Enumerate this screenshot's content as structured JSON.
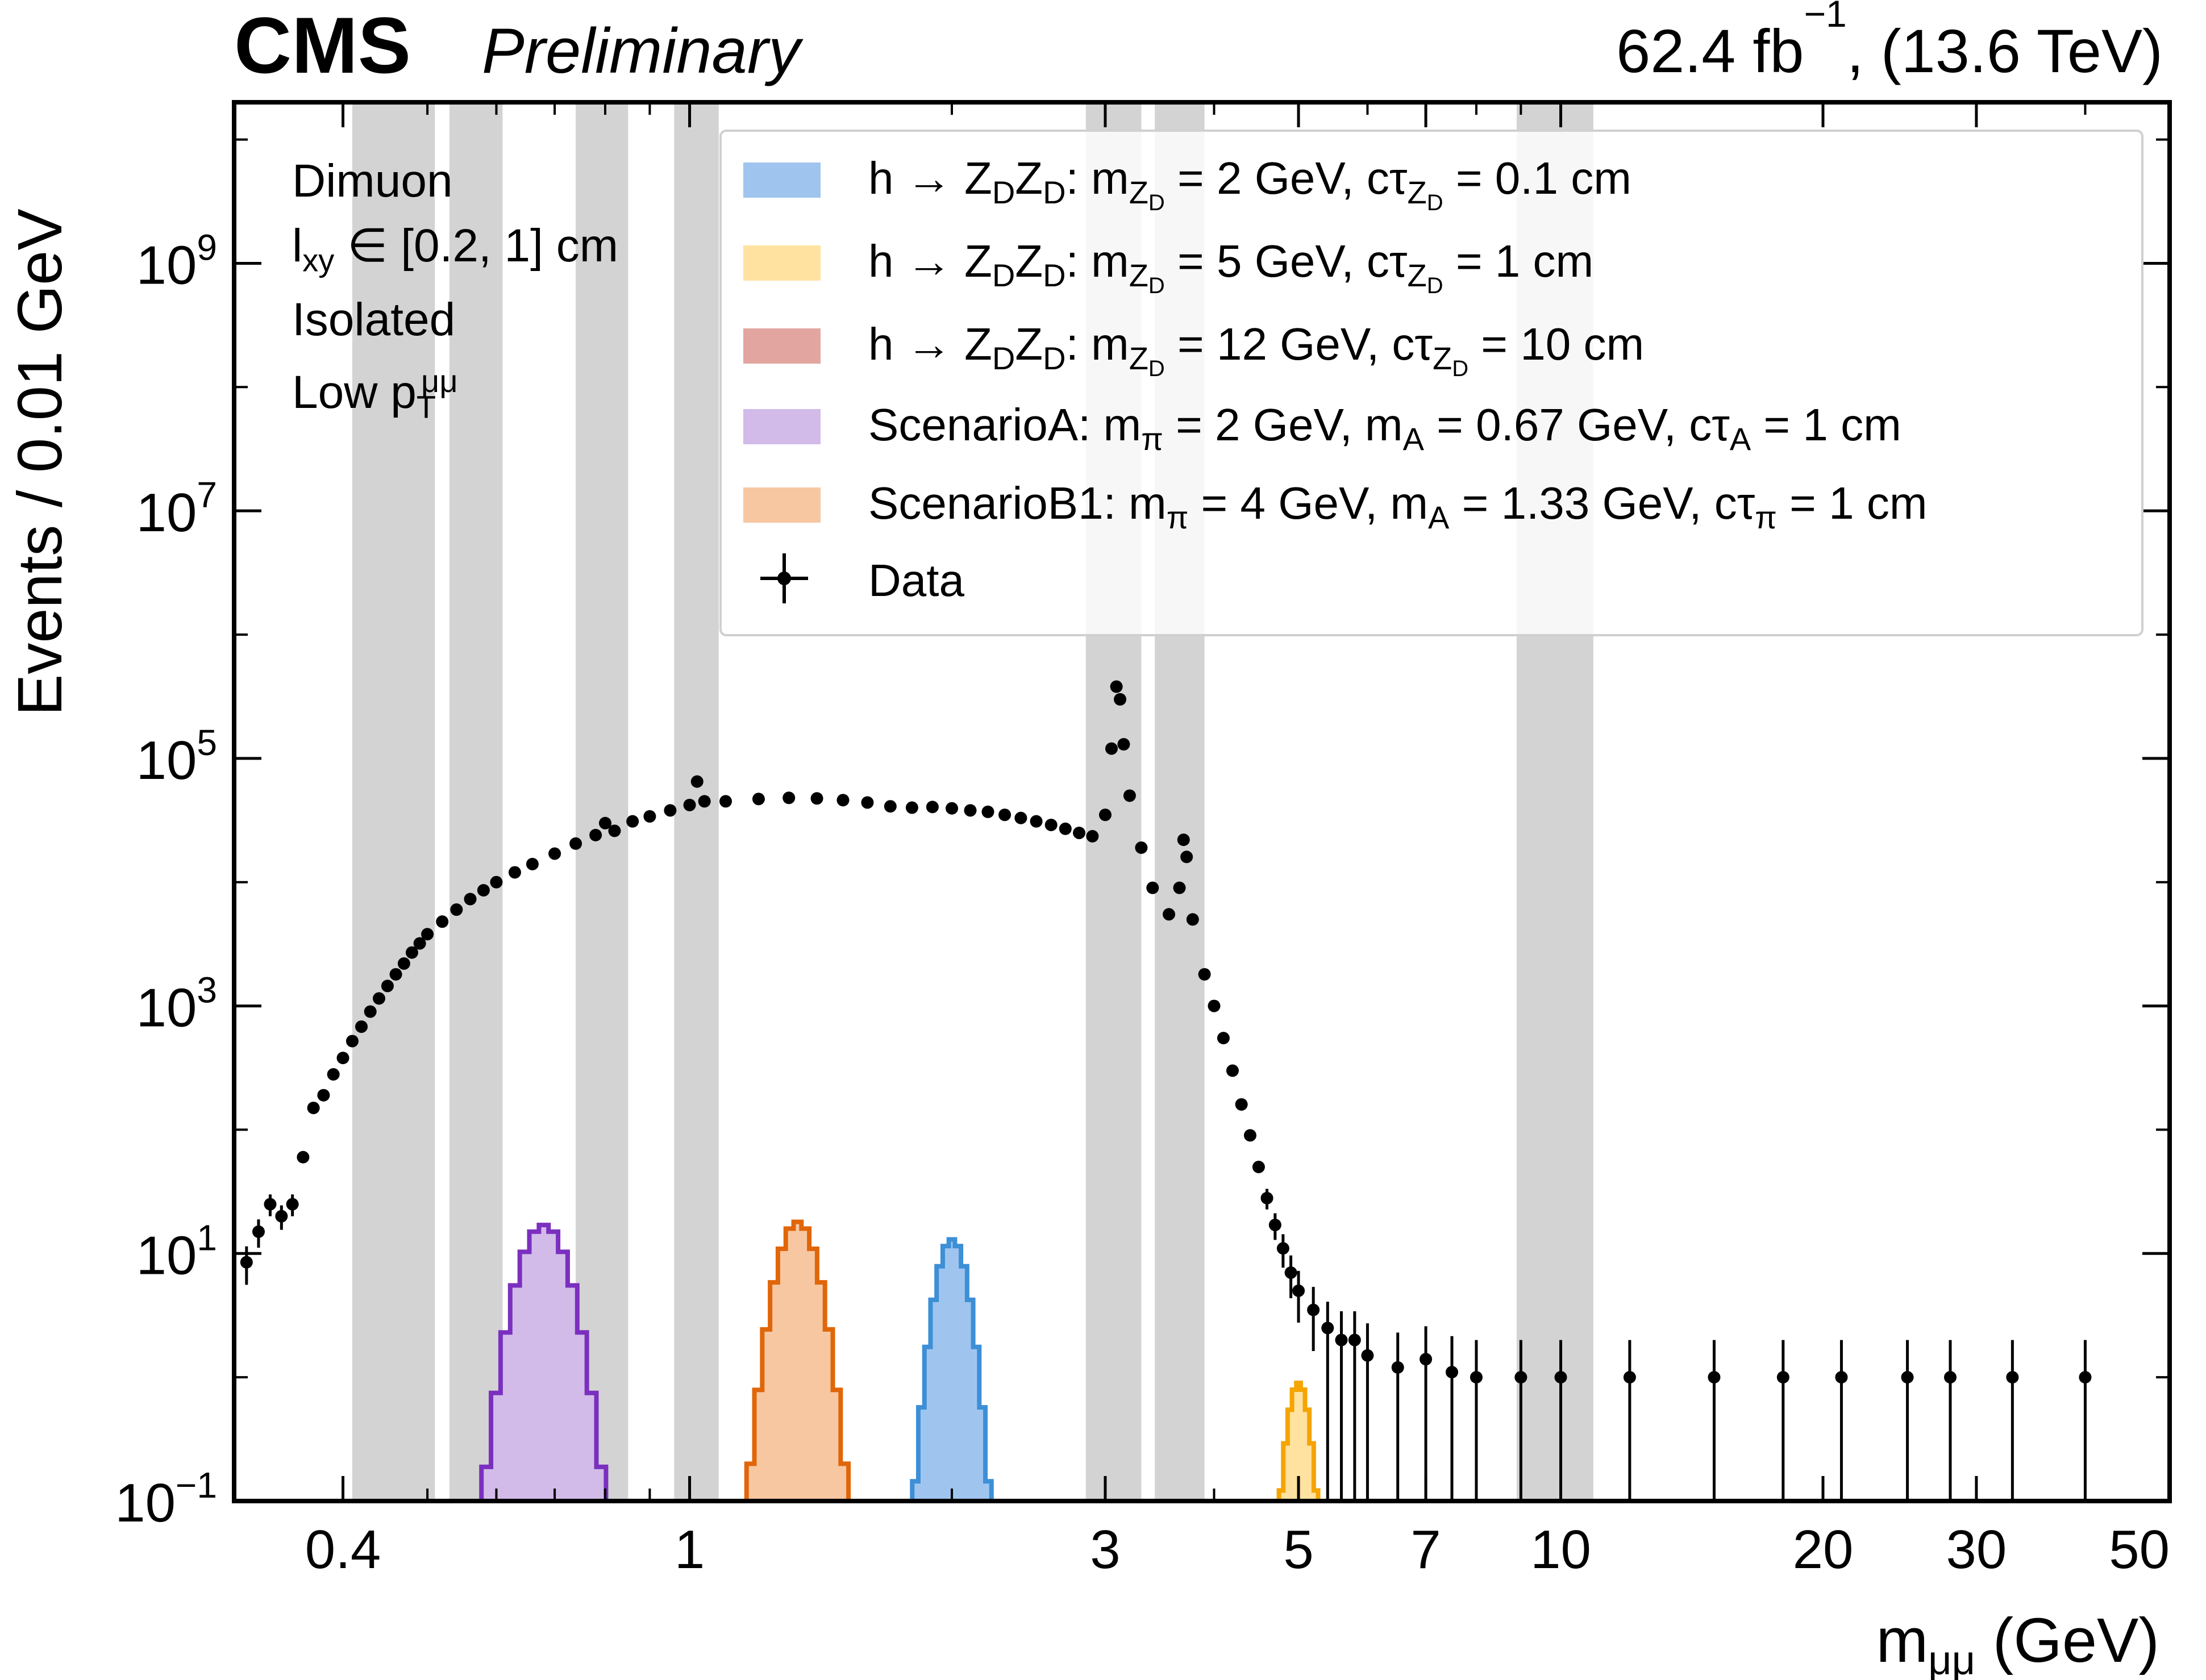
{
  "header": {
    "experiment": "CMS",
    "status": "Preliminary",
    "luminosity": "62.4 fb",
    "luminosity_exponent": "−1",
    "energy": ",  (13.6 TeV)"
  },
  "region": {
    "channel": "Dimuon",
    "lxy_range": "[0.2, 1] cm",
    "isolation": "Isolated",
    "pt_bin": "Low"
  },
  "legend": {
    "entries": [
      {
        "name": "hzd-2gev",
        "color": "#9fc5ef",
        "label_pre": "h → Z",
        "label_mid": " GeV, cτ",
        "mass": "2",
        "ctau": " 0.1 cm"
      },
      {
        "name": "hzd-5gev",
        "color": "#ffe2a0",
        "label_pre": "h → Z",
        "label_mid": " GeV, cτ",
        "mass": "5",
        "ctau": " 1 cm"
      },
      {
        "name": "hzd-12gev",
        "color": "#e2a5a0",
        "label_pre": "h → Z",
        "label_mid": " GeV, cτ",
        "mass": "12",
        "ctau": " 10 cm"
      }
    ],
    "scenarioA": "ScenarioA: m",
    "scenarioA_rest": " = 2 GeV, m",
    "scenarioA_ma": " = 0.67 GeV, cτ",
    "scenarioA_ct": " =  1 cm",
    "scenarioB": "ScenarioB1: m",
    "scenarioB_rest": " = 4 GeV, m",
    "scenarioB_ma": " = 1.33 GeV, cτ",
    "scenarioB_ct": " =  1 cm",
    "data_label": "Data",
    "colors": {
      "scenarioA": "#d2bbe9",
      "scenarioB1": "#f7c7a2"
    }
  },
  "chart_data": {
    "type": "line",
    "xscale": "log",
    "yscale": "log",
    "xlim": [
      0.3,
      50
    ],
    "ylim": [
      0.1,
      20000000000.0
    ],
    "xlabel": "m",
    "xlabel_sub": "μμ",
    "xlabel_unit": " (GeV)",
    "ylabel": "Events / 0.01 GeV",
    "x_ticks": [
      {
        "v": 0.4,
        "label": "0.4"
      },
      {
        "v": 1,
        "label": "1"
      },
      {
        "v": 3,
        "label": "3"
      },
      {
        "v": 5,
        "label": "5"
      },
      {
        "v": 7,
        "label": "7"
      },
      {
        "v": 10,
        "label": "10"
      },
      {
        "v": 20,
        "label": "20"
      },
      {
        "v": 30,
        "label": "30"
      },
      {
        "v": 50,
        "label": "50"
      }
    ],
    "y_ticks": [
      {
        "v": 0.1,
        "base": "10",
        "exp": "−1"
      },
      {
        "v": 10,
        "base": "10",
        "exp": "1"
      },
      {
        "v": 1000,
        "base": "10",
        "exp": "3"
      },
      {
        "v": 100000,
        "base": "10",
        "exp": "5"
      },
      {
        "v": 10000000,
        "base": "10",
        "exp": "7"
      },
      {
        "v": 1000000000,
        "base": "10",
        "exp": "9"
      }
    ],
    "masked_regions": [
      [
        0.41,
        0.51
      ],
      [
        0.53,
        0.61
      ],
      [
        0.74,
        0.85
      ],
      [
        0.96,
        1.08
      ],
      [
        2.85,
        3.3
      ],
      [
        3.42,
        3.9
      ],
      [
        8.9,
        10.9
      ]
    ],
    "data_points": [
      [
        0.31,
        8.5
      ],
      [
        0.32,
        15
      ],
      [
        0.33,
        25
      ],
      [
        0.34,
        20
      ],
      [
        0.35,
        25
      ],
      [
        0.36,
        60
      ],
      [
        0.37,
        150
      ],
      [
        0.38,
        190
      ],
      [
        0.39,
        280
      ],
      [
        0.4,
        380
      ],
      [
        0.41,
        520
      ],
      [
        0.42,
        680
      ],
      [
        0.43,
        900
      ],
      [
        0.44,
        1150
      ],
      [
        0.45,
        1450
      ],
      [
        0.46,
        1800
      ],
      [
        0.47,
        2200
      ],
      [
        0.48,
        2700
      ],
      [
        0.49,
        3200
      ],
      [
        0.5,
        3800
      ],
      [
        0.52,
        4800
      ],
      [
        0.54,
        6000
      ],
      [
        0.56,
        7300
      ],
      [
        0.58,
        8600
      ],
      [
        0.6,
        10000
      ],
      [
        0.63,
        12000
      ],
      [
        0.66,
        14000
      ],
      [
        0.7,
        17000
      ],
      [
        0.74,
        20500
      ],
      [
        0.78,
        24000
      ],
      [
        0.8,
        30000
      ],
      [
        0.82,
        26000
      ],
      [
        0.86,
        31000
      ],
      [
        0.9,
        34000
      ],
      [
        0.95,
        38000
      ],
      [
        1.0,
        42000
      ],
      [
        1.02,
        65000
      ],
      [
        1.04,
        45000
      ],
      [
        1.1,
        45000
      ],
      [
        1.2,
        47000
      ],
      [
        1.3,
        48000
      ],
      [
        1.4,
        47500
      ],
      [
        1.5,
        46000
      ],
      [
        1.6,
        44000
      ],
      [
        1.7,
        41000
      ],
      [
        1.8,
        40000
      ],
      [
        1.9,
        40500
      ],
      [
        2.0,
        39500
      ],
      [
        2.1,
        38000
      ],
      [
        2.2,
        37000
      ],
      [
        2.3,
        35000
      ],
      [
        2.4,
        33000
      ],
      [
        2.5,
        31000
      ],
      [
        2.6,
        29000
      ],
      [
        2.7,
        27000
      ],
      [
        2.8,
        25000
      ],
      [
        2.9,
        23500
      ],
      [
        3.0,
        35000
      ],
      [
        3.05,
        120000
      ],
      [
        3.09,
        380000
      ],
      [
        3.12,
        300000
      ],
      [
        3.15,
        130000
      ],
      [
        3.2,
        50000
      ],
      [
        3.3,
        19000
      ],
      [
        3.4,
        9000
      ],
      [
        3.55,
        5500
      ],
      [
        3.65,
        9000
      ],
      [
        3.69,
        22000
      ],
      [
        3.72,
        16000
      ],
      [
        3.78,
        5000
      ],
      [
        3.9,
        1800
      ],
      [
        4.0,
        1000
      ],
      [
        4.1,
        550
      ],
      [
        4.2,
        300
      ],
      [
        4.3,
        160
      ],
      [
        4.4,
        90
      ],
      [
        4.5,
        50
      ],
      [
        4.6,
        28
      ],
      [
        4.7,
        17
      ],
      [
        4.8,
        11
      ],
      [
        4.9,
        7
      ],
      [
        5.0,
        5
      ],
      [
        5.2,
        3.5
      ],
      [
        5.4,
        2.5
      ],
      [
        5.6,
        2
      ],
      [
        5.8,
        2
      ],
      [
        6.0,
        1.5
      ],
      [
        6.5,
        1.2
      ],
      [
        7.0,
        1.4
      ],
      [
        7.5,
        1.1
      ],
      [
        8.0,
        1
      ],
      [
        9.0,
        1
      ],
      [
        10,
        1
      ],
      [
        12,
        1
      ],
      [
        15,
        1
      ],
      [
        18,
        1
      ],
      [
        21,
        1
      ],
      [
        25,
        1
      ],
      [
        28,
        1
      ],
      [
        33,
        1
      ],
      [
        40,
        1
      ]
    ],
    "series": [
      {
        "name": "ScenarioA",
        "color": "#7b2fbf",
        "fill": "#d2bbe9",
        "peak_x": 0.68,
        "peak_y": 17,
        "width": 0.022
      },
      {
        "name": "ScenarioB1",
        "color": "#e0660a",
        "fill": "#f7c7a2",
        "peak_x": 1.33,
        "peak_y": 18,
        "width": 0.018
      },
      {
        "name": "hZDZD 2 GeV",
        "color": "#3d8fd6",
        "fill": "#9fc5ef",
        "peak_x": 2.0,
        "peak_y": 13,
        "width": 0.014
      },
      {
        "name": "hZDZD 5 GeV",
        "color": "#f5a400",
        "fill": "#ffe2a0",
        "peak_x": 5.0,
        "peak_y": 0.9,
        "width": 0.01
      }
    ]
  }
}
